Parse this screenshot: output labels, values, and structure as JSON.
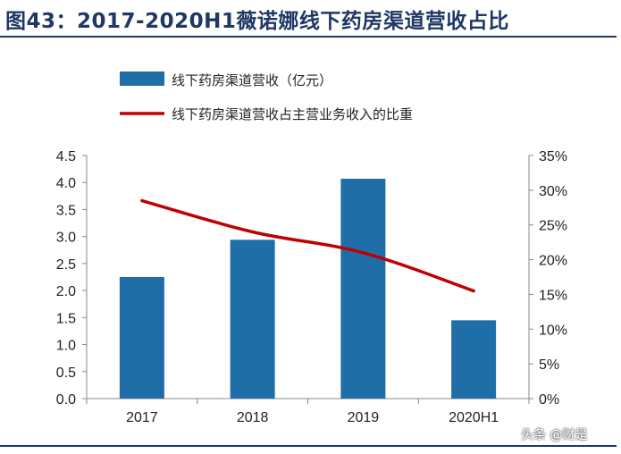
{
  "header": {
    "title": "图43：2017-2020H1薇诺娜线下药房渠道营收占比"
  },
  "watermark": "头条 @财是",
  "colors": {
    "bar": "#1f6ea8",
    "line": "#c00000",
    "title": "#1f3864"
  },
  "chart_data": {
    "type": "bar",
    "categories": [
      "2017",
      "2018",
      "2019",
      "2020H1"
    ],
    "series": [
      {
        "name": "线下药房渠道营收（亿元）",
        "type": "bar",
        "axis": "left",
        "values": [
          2.25,
          2.94,
          4.07,
          1.45
        ]
      },
      {
        "name": "线下药房渠道营收占主营业务收入的比重",
        "type": "line",
        "axis": "right",
        "values": [
          0.285,
          0.24,
          0.21,
          0.155
        ]
      }
    ],
    "y_left": {
      "min": 0,
      "max": 4.5,
      "ticks": [
        "0.0",
        "0.5",
        "1.0",
        "1.5",
        "2.0",
        "2.5",
        "3.0",
        "3.5",
        "4.0",
        "4.5"
      ]
    },
    "y_right": {
      "min": 0,
      "max": 0.35,
      "ticks": [
        "0%",
        "5%",
        "10%",
        "15%",
        "20%",
        "25%",
        "30%",
        "35%"
      ]
    },
    "legend_position": "top"
  }
}
